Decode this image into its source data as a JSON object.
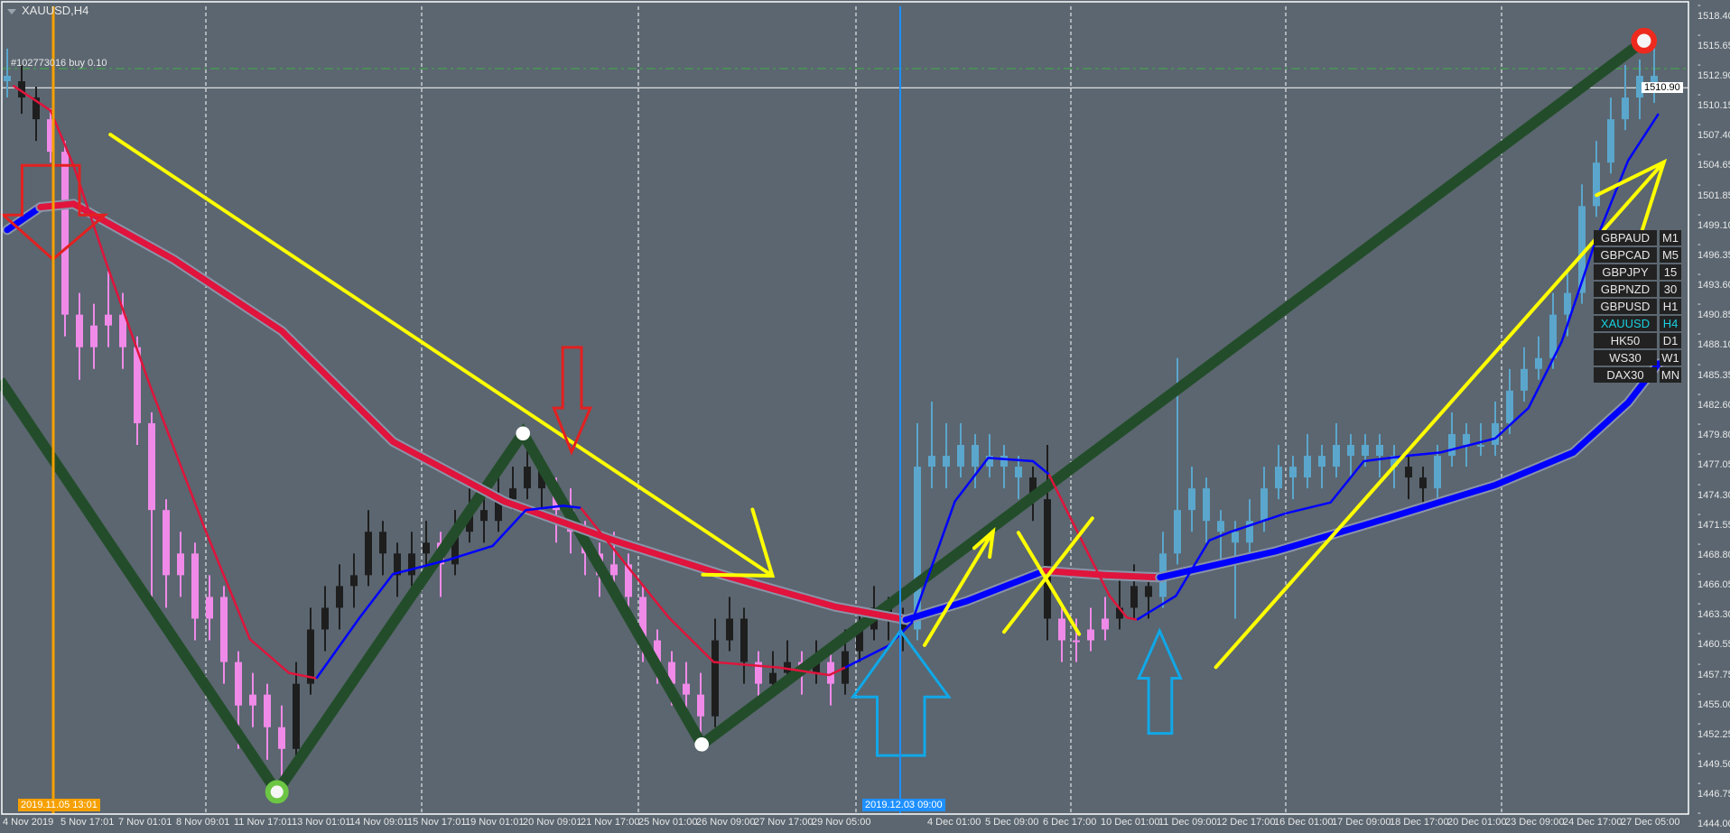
{
  "window": {
    "symbol_title": "XAUUSD,H4",
    "trade_label": "#102773016 buy 0.10",
    "current_price": "1510.90"
  },
  "symbol_panel": [
    {
      "symbol": "GBPAUD",
      "tf": "M1"
    },
    {
      "symbol": "GBPCAD",
      "tf": "M5"
    },
    {
      "symbol": "GBPJPY",
      "tf": "15"
    },
    {
      "symbol": "GBPNZD",
      "tf": "30"
    },
    {
      "symbol": "GBPUSD",
      "tf": "H1"
    },
    {
      "symbol": "XAUUSD",
      "tf": "H4",
      "active": true
    },
    {
      "symbol": "HK50",
      "tf": "D1"
    },
    {
      "symbol": "WS30",
      "tf": "W1"
    },
    {
      "symbol": "DAX30",
      "tf": "MN"
    }
  ],
  "chart_data": {
    "type": "candlestick",
    "symbol": "XAUUSD",
    "timeframe": "H4",
    "ylim": [
      1444.0,
      1518.4
    ],
    "price_ticks": [
      "1518.40",
      "1515.65",
      "1512.90",
      "1510.15",
      "1507.40",
      "1504.65",
      "1501.85",
      "1499.10",
      "1496.35",
      "1493.60",
      "1490.85",
      "1488.10",
      "1485.35",
      "1482.60",
      "1479.80",
      "1477.05",
      "1474.30",
      "1471.55",
      "1468.80",
      "1466.05",
      "1463.30",
      "1460.55",
      "1457.75",
      "1455.00",
      "1452.25",
      "1449.50",
      "1446.75",
      "1444.00"
    ],
    "time_ticks": [
      "4 Nov 2019",
      "5 Nov 17:01",
      "7 Nov 01:01",
      "8 Nov 09:01",
      "11 Nov 17:01",
      "13 Nov 01:01",
      "14 Nov 09:01",
      "15 Nov 17:01",
      "19 Nov 01:01",
      "20 Nov 09:01",
      "21 Nov 17:00",
      "25 Nov 01:00",
      "26 Nov 09:00",
      "27 Nov 17:00",
      "29 Nov 05:00",
      "",
      "4 Dec 01:00",
      "5 Dec 09:00",
      "6 Dec 17:00",
      "10 Dec 01:00",
      "11 Dec 09:00",
      "12 Dec 17:00",
      "16 Dec 01:00",
      "17 Dec 09:00",
      "18 Dec 17:00",
      "20 Dec 01:00",
      "23 Dec 09:00",
      "24 Dec 17:00",
      "27 Dec 05:00"
    ],
    "highlighted_times": [
      {
        "text": "2019.11.05 13:01",
        "color": "#f5a000"
      },
      {
        "text": "2019.12.03 09:00",
        "color": "#1e90ff"
      }
    ],
    "buy_line_price": 1512.66,
    "current_price": 1510.9,
    "candle_colors": {
      "u": "#5ba6cc",
      "p": "#f08ae8",
      "b": "#1e1e1e"
    },
    "candles": [
      [
        1512,
        1514.5,
        1510,
        1511.5,
        "u"
      ],
      [
        1511.5,
        1513,
        1508.5,
        1510,
        "b"
      ],
      [
        1510,
        1511,
        1506,
        1508,
        "b"
      ],
      [
        1508,
        1509,
        1504,
        1505,
        "p"
      ],
      [
        1505,
        1506,
        1488,
        1490,
        "p"
      ],
      [
        1490,
        1492,
        1484,
        1487,
        "p"
      ],
      [
        1487,
        1491,
        1485,
        1489,
        "p"
      ],
      [
        1489,
        1494,
        1487,
        1490,
        "p"
      ],
      [
        1490,
        1492,
        1485,
        1487,
        "p"
      ],
      [
        1487,
        1488,
        1478,
        1480,
        "p"
      ],
      [
        1480,
        1481,
        1464,
        1472,
        "p"
      ],
      [
        1472,
        1473,
        1463,
        1466,
        "p"
      ],
      [
        1466,
        1470,
        1464,
        1468,
        "p"
      ],
      [
        1468,
        1469,
        1460,
        1462,
        "p"
      ],
      [
        1462,
        1466,
        1460,
        1464,
        "p"
      ],
      [
        1464,
        1465,
        1456,
        1458,
        "p"
      ],
      [
        1458,
        1459,
        1450,
        1454,
        "p"
      ],
      [
        1454,
        1457,
        1452,
        1455,
        "p"
      ],
      [
        1455,
        1456,
        1449,
        1452,
        "p"
      ],
      [
        1452,
        1454,
        1446.5,
        1450,
        "p"
      ],
      [
        1450,
        1458,
        1449,
        1456,
        "b"
      ],
      [
        1456,
        1463,
        1455,
        1461,
        "b"
      ],
      [
        1461,
        1465,
        1459,
        1463,
        "b"
      ],
      [
        1463,
        1467,
        1461,
        1465,
        "b"
      ],
      [
        1465,
        1468,
        1463,
        1466,
        "b"
      ],
      [
        1466,
        1472,
        1465,
        1470,
        "b"
      ],
      [
        1470,
        1471,
        1466,
        1468,
        "b"
      ],
      [
        1468,
        1469,
        1464,
        1466,
        "b"
      ],
      [
        1466,
        1470,
        1465,
        1468,
        "b"
      ],
      [
        1468,
        1471,
        1467,
        1469,
        "b"
      ],
      [
        1469,
        1470,
        1464,
        1467,
        "p"
      ],
      [
        1467,
        1472,
        1466,
        1470,
        "b"
      ],
      [
        1470,
        1474,
        1469,
        1472,
        "b"
      ],
      [
        1472,
        1474,
        1469,
        1471,
        "b"
      ],
      [
        1471,
        1475,
        1470,
        1473,
        "b"
      ],
      [
        1473,
        1476,
        1472,
        1474,
        "b"
      ],
      [
        1474,
        1479,
        1473,
        1476,
        "b"
      ],
      [
        1476,
        1477,
        1472,
        1474,
        "b"
      ],
      [
        1474,
        1475,
        1469,
        1472,
        "p"
      ],
      [
        1472,
        1474,
        1468,
        1470,
        "p"
      ],
      [
        1470,
        1471,
        1466,
        1468,
        "p"
      ],
      [
        1468,
        1469,
        1464,
        1466,
        "p"
      ],
      [
        1466,
        1470,
        1465,
        1467,
        "p"
      ],
      [
        1467,
        1468,
        1462,
        1464,
        "p"
      ],
      [
        1464,
        1465,
        1458,
        1460,
        "p"
      ],
      [
        1460,
        1461,
        1456,
        1458,
        "p"
      ],
      [
        1458,
        1459,
        1454,
        1456,
        "p"
      ],
      [
        1456,
        1458,
        1453,
        1455,
        "p"
      ],
      [
        1455,
        1457,
        1450.5,
        1453,
        "p"
      ],
      [
        1453,
        1462,
        1452,
        1460,
        "b"
      ],
      [
        1460,
        1464,
        1459,
        1462,
        "b"
      ],
      [
        1462,
        1463,
        1456,
        1458,
        "b"
      ],
      [
        1458,
        1459,
        1454,
        1456,
        "p"
      ],
      [
        1456,
        1459,
        1455,
        1457,
        "b"
      ],
      [
        1457,
        1460,
        1456,
        1458,
        "b"
      ],
      [
        1458,
        1459,
        1455,
        1457,
        "p"
      ],
      [
        1457,
        1460,
        1456,
        1458,
        "b"
      ],
      [
        1458,
        1459,
        1454,
        1456,
        "p"
      ],
      [
        1456,
        1461,
        1455,
        1459,
        "b"
      ],
      [
        1459,
        1463,
        1458,
        1461,
        "b"
      ],
      [
        1461,
        1465,
        1460,
        1463,
        "b"
      ],
      [
        1463,
        1464,
        1460,
        1462,
        "b"
      ],
      [
        1462,
        1463,
        1459,
        1461,
        "b"
      ],
      [
        1461,
        1480,
        1460,
        1476,
        "u"
      ],
      [
        1476,
        1482,
        1474,
        1477,
        "u"
      ],
      [
        1477,
        1480,
        1474,
        1476,
        "u"
      ],
      [
        1476,
        1480,
        1475,
        1478,
        "u"
      ],
      [
        1478,
        1479,
        1474,
        1476,
        "u"
      ],
      [
        1476,
        1479,
        1475,
        1477,
        "u"
      ],
      [
        1477,
        1478,
        1474,
        1476,
        "u"
      ],
      [
        1476,
        1477,
        1473,
        1475,
        "u"
      ],
      [
        1475,
        1476,
        1471,
        1473,
        "b"
      ],
      [
        1473,
        1478,
        1460,
        1462,
        "b"
      ],
      [
        1462,
        1463,
        1458,
        1460,
        "p"
      ],
      [
        1460,
        1462,
        1458,
        1460,
        "p"
      ],
      [
        1460,
        1463,
        1459,
        1461,
        "p"
      ],
      [
        1461,
        1464,
        1460,
        1462,
        "p"
      ],
      [
        1462,
        1466,
        1461,
        1463,
        "b"
      ],
      [
        1463,
        1467,
        1462,
        1465,
        "b"
      ],
      [
        1465,
        1466,
        1462,
        1464,
        "b"
      ],
      [
        1464,
        1470,
        1463,
        1468,
        "u"
      ],
      [
        1468,
        1486,
        1467,
        1472,
        "u"
      ],
      [
        1472,
        1476,
        1470,
        1474,
        "u"
      ],
      [
        1474,
        1475,
        1469,
        1471,
        "u"
      ],
      [
        1471,
        1472,
        1467,
        1470,
        "u"
      ],
      [
        1470,
        1471,
        1462,
        1469,
        "u"
      ],
      [
        1469,
        1473,
        1468,
        1471,
        "u"
      ],
      [
        1471,
        1476,
        1470,
        1474,
        "u"
      ],
      [
        1474,
        1478,
        1473,
        1476,
        "u"
      ],
      [
        1476,
        1477,
        1473,
        1475,
        "u"
      ],
      [
        1475,
        1479,
        1474,
        1477,
        "u"
      ],
      [
        1477,
        1478,
        1474,
        1476,
        "u"
      ],
      [
        1476,
        1480,
        1475,
        1478,
        "u"
      ],
      [
        1478,
        1479,
        1475,
        1477,
        "u"
      ],
      [
        1477,
        1479,
        1476,
        1478,
        "u"
      ],
      [
        1478,
        1479,
        1475,
        1477,
        "u"
      ],
      [
        1477,
        1478,
        1474,
        1476,
        "u"
      ],
      [
        1476,
        1477,
        1473,
        1475,
        "b"
      ],
      [
        1475,
        1476,
        1472,
        1474,
        "b"
      ],
      [
        1474,
        1478,
        1473,
        1477,
        "u"
      ],
      [
        1477,
        1481,
        1476,
        1479,
        "u"
      ],
      [
        1479,
        1480,
        1476,
        1478,
        "u"
      ],
      [
        1478,
        1480,
        1477,
        1478,
        "u"
      ],
      [
        1478,
        1482,
        1477,
        1480,
        "u"
      ],
      [
        1480,
        1485,
        1479,
        1483,
        "u"
      ],
      [
        1483,
        1487,
        1482,
        1485,
        "u"
      ],
      [
        1485,
        1488,
        1484,
        1486,
        "u"
      ],
      [
        1486,
        1492,
        1485,
        1490,
        "u"
      ],
      [
        1490,
        1494,
        1488,
        1492,
        "u"
      ],
      [
        1492,
        1502,
        1491,
        1500,
        "u"
      ],
      [
        1500,
        1506,
        1499,
        1504,
        "u"
      ],
      [
        1504,
        1510,
        1503,
        1508,
        "u"
      ],
      [
        1508,
        1513,
        1507,
        1510,
        "u"
      ],
      [
        1510,
        1513.5,
        1508,
        1512,
        "u"
      ],
      [
        1512,
        1515.5,
        1509.5,
        1511,
        "u"
      ]
    ],
    "moving_averages": [
      {
        "name": "slow",
        "segments": [
          {
            "color": "#0000ff",
            "points": [
              [
                0,
                1497.8
              ],
              [
                2.3,
                1499.9
              ]
            ]
          },
          {
            "color": "#e0143c",
            "points": [
              [
                2.3,
                1499.9
              ],
              [
                4.6,
                1500.2
              ],
              [
                11.5,
                1495.1
              ],
              [
                19,
                1488.5
              ],
              [
                26.7,
                1478.3
              ],
              [
                34.4,
                1472.8
              ],
              [
                42,
                1469.2
              ],
              [
                49.6,
                1466.0
              ],
              [
                57.3,
                1463.1
              ],
              [
                62.2,
                1461.9
              ]
            ]
          },
          {
            "color": "#0000ff",
            "points": [
              [
                62.2,
                1461.9
              ],
              [
                66.4,
                1463.6
              ],
              [
                71.8,
                1466.4
              ]
            ]
          },
          {
            "color": "#e0143c",
            "points": [
              [
                71.8,
                1466.4
              ],
              [
                76,
                1466.0
              ],
              [
                79.8,
                1465.8
              ]
            ]
          },
          {
            "color": "#0000ff",
            "points": [
              [
                79.8,
                1465.8
              ],
              [
                87.8,
                1468.2
              ],
              [
                95.4,
                1471.2
              ],
              [
                103,
                1474.3
              ],
              [
                108.4,
                1477.3
              ],
              [
                112.2,
                1481.9
              ],
              [
                114.3,
                1485.5
              ]
            ]
          }
        ]
      },
      {
        "name": "fast",
        "segments": [
          {
            "color": "#e0143c",
            "points": [
              [
                0.4,
                1511.1
              ],
              [
                3,
                1508.8
              ],
              [
                4.6,
                1503.7
              ],
              [
                6.9,
                1494.6
              ],
              [
                9.9,
                1483.4
              ],
              [
                13.7,
                1470.2
              ],
              [
                16.8,
                1460.1
              ],
              [
                19.5,
                1457.0
              ],
              [
                21.4,
                1456.5
              ]
            ]
          },
          {
            "color": "#0000ff",
            "points": [
              [
                21.4,
                1456.5
              ],
              [
                24.4,
                1462.1
              ],
              [
                26.7,
                1466.1
              ],
              [
                30.5,
                1467.4
              ],
              [
                33.6,
                1468.7
              ],
              [
                35.9,
                1472.0
              ],
              [
                38.5,
                1472.4
              ],
              [
                39.7,
                1472.2
              ]
            ]
          },
          {
            "color": "#e0143c",
            "points": [
              [
                39.7,
                1472.2
              ],
              [
                42.7,
                1467.2
              ],
              [
                45.8,
                1462.1
              ],
              [
                48.9,
                1458.0
              ],
              [
                53.4,
                1457.5
              ],
              [
                56.9,
                1456.8
              ],
              [
                58,
                1457.5
              ]
            ]
          },
          {
            "color": "#0000ff",
            "points": [
              [
                58,
                1457.5
              ],
              [
                61,
                1459.5
              ],
              [
                62.6,
                1461.6
              ],
              [
                65.6,
                1472.8
              ],
              [
                67.9,
                1476.8
              ],
              [
                71,
                1476.5
              ],
              [
                72.1,
                1475.3
              ]
            ]
          },
          {
            "color": "#e0143c",
            "points": [
              [
                72.1,
                1475.3
              ],
              [
                74,
                1470.2
              ],
              [
                76.3,
                1464.1
              ],
              [
                77.5,
                1462.1
              ],
              [
                78.2,
                1461.9
              ]
            ]
          },
          {
            "color": "#0000ff",
            "points": [
              [
                78.2,
                1461.9
              ],
              [
                80.9,
                1464.1
              ],
              [
                83.2,
                1469.2
              ],
              [
                84.7,
                1470.0
              ],
              [
                88.5,
                1471.7
              ],
              [
                91.6,
                1472.7
              ],
              [
                93.9,
                1476.5
              ],
              [
                96.9,
                1477.0
              ],
              [
                99.2,
                1477.3
              ],
              [
                103,
                1478.6
              ],
              [
                105.3,
                1481.4
              ],
              [
                107.6,
                1487.5
              ],
              [
                109.9,
                1496.6
              ],
              [
                112.2,
                1504.2
              ],
              [
                114.3,
                1508.5
              ]
            ]
          }
        ]
      }
    ]
  }
}
